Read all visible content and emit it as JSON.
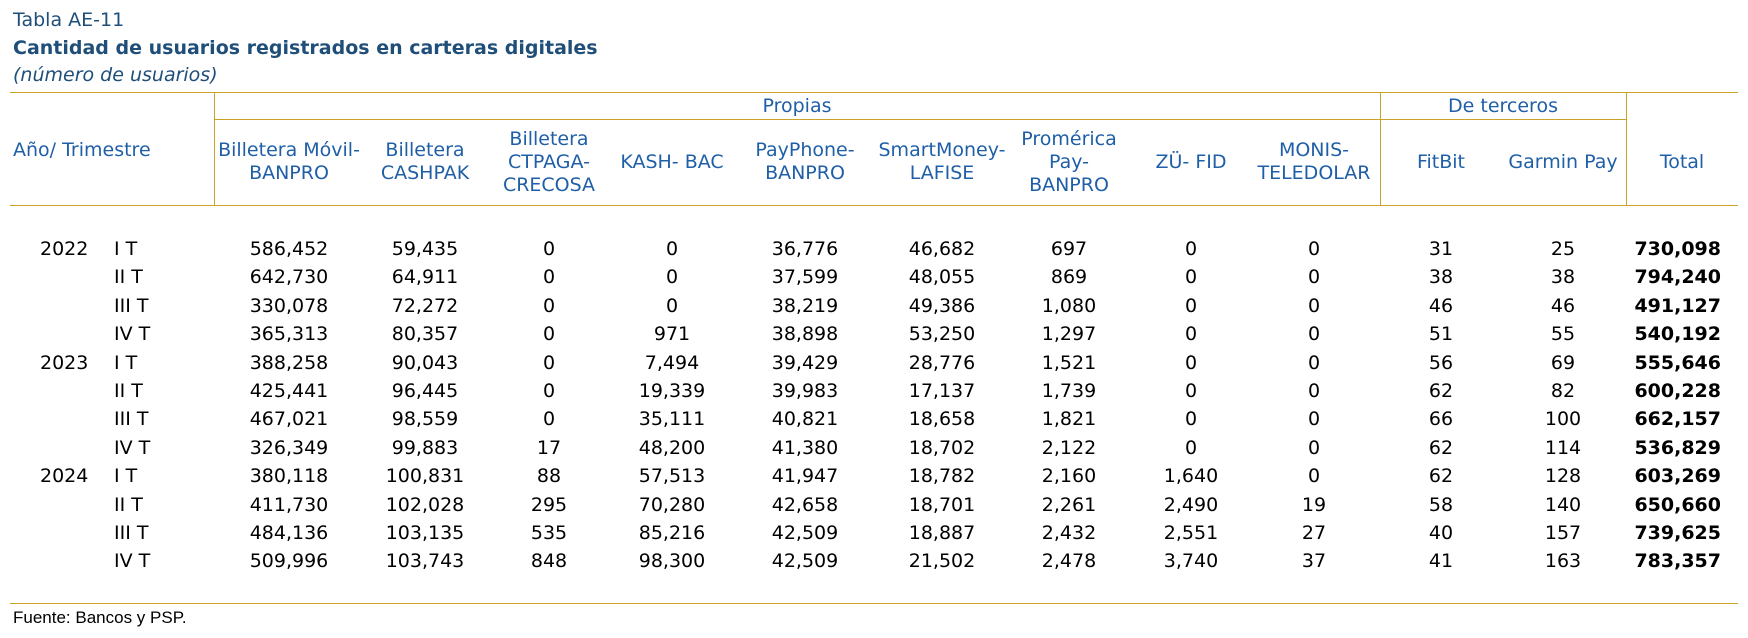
{
  "table_code": "Tabla AE-11",
  "title": "Cantidad de usuarios registrados en carteras digitales",
  "subtitle": "(número de usuarios)",
  "row_header_label": "Año/ Trimestre",
  "group_headers": {
    "own": "Propias",
    "third": "De terceros"
  },
  "columns": [
    "Billetera Móvil-\nBANPRO",
    "Billetera\nCASHPAK",
    "Billetera\nCTPAGA-\nCRECOSA",
    "KASH- BAC",
    "PayPhone-\nBANPRO",
    "SmartMoney-\nLAFISE",
    "Promérica\nPay-\nBANPRO",
    "ZÜ- FID",
    "MONIS-\nTELEDOLAR",
    "FitBit",
    "Garmin Pay",
    "Total"
  ],
  "rows": [
    {
      "year": "2022",
      "quarter": "I T",
      "values": [
        "586,452",
        "59,435",
        "0",
        "0",
        "36,776",
        "46,682",
        "697",
        "0",
        "0",
        "31",
        "25",
        "730,098"
      ]
    },
    {
      "year": "",
      "quarter": "II T",
      "values": [
        "642,730",
        "64,911",
        "0",
        "0",
        "37,599",
        "48,055",
        "869",
        "0",
        "0",
        "38",
        "38",
        "794,240"
      ]
    },
    {
      "year": "",
      "quarter": "III T",
      "values": [
        "330,078",
        "72,272",
        "0",
        "0",
        "38,219",
        "49,386",
        "1,080",
        "0",
        "0",
        "46",
        "46",
        "491,127"
      ]
    },
    {
      "year": "",
      "quarter": "IV T",
      "values": [
        "365,313",
        "80,357",
        "0",
        "971",
        "38,898",
        "53,250",
        "1,297",
        "0",
        "0",
        "51",
        "55",
        "540,192"
      ]
    },
    {
      "year": "2023",
      "quarter": "I T",
      "values": [
        "388,258",
        "90,043",
        "0",
        "7,494",
        "39,429",
        "28,776",
        "1,521",
        "0",
        "0",
        "56",
        "69",
        "555,646"
      ]
    },
    {
      "year": "",
      "quarter": "II T",
      "values": [
        "425,441",
        "96,445",
        "0",
        "19,339",
        "39,983",
        "17,137",
        "1,739",
        "0",
        "0",
        "62",
        "82",
        "600,228"
      ]
    },
    {
      "year": "",
      "quarter": "III T",
      "values": [
        "467,021",
        "98,559",
        "0",
        "35,111",
        "40,821",
        "18,658",
        "1,821",
        "0",
        "0",
        "66",
        "100",
        "662,157"
      ]
    },
    {
      "year": "",
      "quarter": "IV T",
      "values": [
        "326,349",
        "99,883",
        "17",
        "48,200",
        "41,380",
        "18,702",
        "2,122",
        "0",
        "0",
        "62",
        "114",
        "536,829"
      ]
    },
    {
      "year": "2024",
      "quarter": "I T",
      "values": [
        "380,118",
        "100,831",
        "88",
        "57,513",
        "41,947",
        "18,782",
        "2,160",
        "1,640",
        "0",
        "62",
        "128",
        "603,269"
      ]
    },
    {
      "year": "",
      "quarter": "II T",
      "values": [
        "411,730",
        "102,028",
        "295",
        "70,280",
        "42,658",
        "18,701",
        "2,261",
        "2,490",
        "19",
        "58",
        "140",
        "650,660"
      ]
    },
    {
      "year": "",
      "quarter": "III T",
      "values": [
        "484,136",
        "103,135",
        "535",
        "85,216",
        "42,509",
        "18,887",
        "2,432",
        "2,551",
        "27",
        "40",
        "157",
        "739,625"
      ]
    },
    {
      "year": "",
      "quarter": "IV T",
      "values": [
        "509,996",
        "103,743",
        "848",
        "98,300",
        "42,509",
        "21,502",
        "2,478",
        "3,740",
        "37",
        "41",
        "163",
        "783,357"
      ]
    }
  ],
  "source": "Fuente: Bancos y PSP."
}
